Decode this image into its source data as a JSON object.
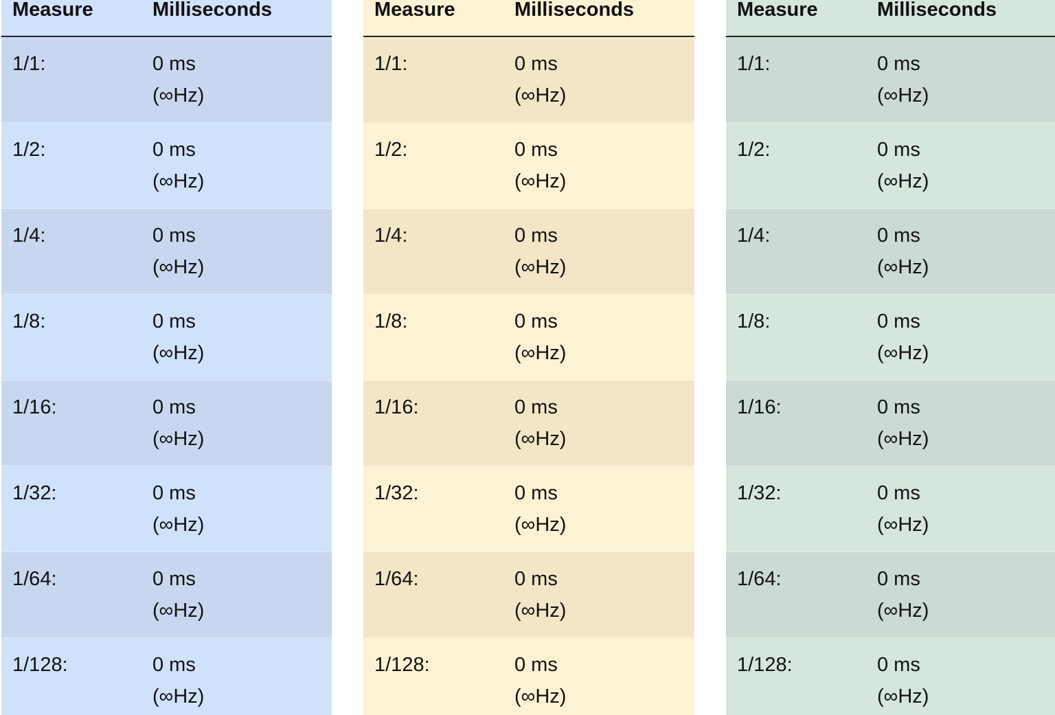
{
  "tables": [
    {
      "header": [
        "Measure",
        "Milliseconds"
      ],
      "rows": [
        [
          "1/1:",
          "0 ms",
          "(∞Hz)"
        ],
        [
          "1/2:",
          "0 ms",
          "(∞Hz)"
        ],
        [
          "1/4:",
          "0 ms",
          "(∞Hz)"
        ],
        [
          "1/8:",
          "0 ms",
          "(∞Hz)"
        ],
        [
          "1/16:",
          "0 ms",
          "(∞Hz)"
        ],
        [
          "1/32:",
          "0 ms",
          "(∞Hz)"
        ],
        [
          "1/64:",
          "0 ms",
          "(∞Hz)"
        ],
        [
          "1/128:",
          "0 ms",
          "(∞Hz)"
        ]
      ]
    },
    {
      "header": [
        "Measure",
        "Milliseconds"
      ],
      "rows": [
        [
          "1/1:",
          "0 ms",
          "(∞Hz)"
        ],
        [
          "1/2:",
          "0 ms",
          "(∞Hz)"
        ],
        [
          "1/4:",
          "0 ms",
          "(∞Hz)"
        ],
        [
          "1/8:",
          "0 ms",
          "(∞Hz)"
        ],
        [
          "1/16:",
          "0 ms",
          "(∞Hz)"
        ],
        [
          "1/32:",
          "0 ms",
          "(∞Hz)"
        ],
        [
          "1/64:",
          "0 ms",
          "(∞Hz)"
        ],
        [
          "1/128:",
          "0 ms",
          "(∞Hz)"
        ]
      ]
    },
    {
      "header": [
        "Measure",
        "Milliseconds"
      ],
      "rows": [
        [
          "1/1:",
          "0 ms",
          "(∞Hz)"
        ],
        [
          "1/2:",
          "0 ms",
          "(∞Hz)"
        ],
        [
          "1/4:",
          "0 ms",
          "(∞Hz)"
        ],
        [
          "1/8:",
          "0 ms",
          "(∞Hz)"
        ],
        [
          "1/16:",
          "0 ms",
          "(∞Hz)"
        ],
        [
          "1/32:",
          "0 ms",
          "(∞Hz)"
        ],
        [
          "1/64:",
          "0 ms",
          "(∞Hz)"
        ],
        [
          "1/128:",
          "0 ms",
          "(∞Hz)"
        ]
      ]
    }
  ]
}
